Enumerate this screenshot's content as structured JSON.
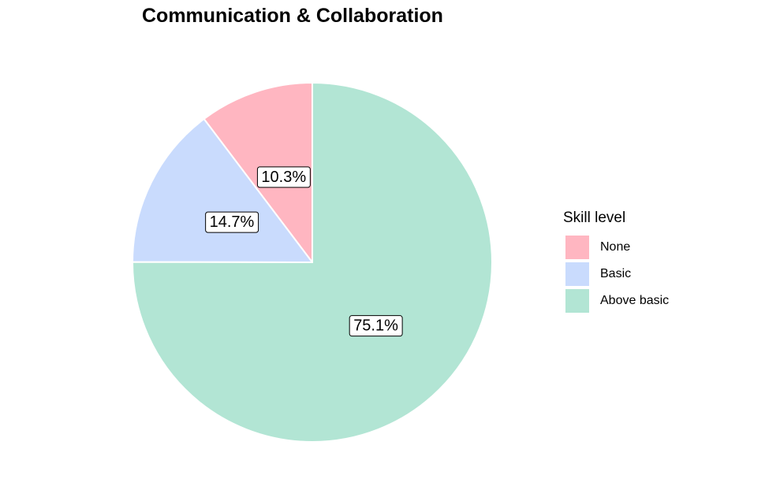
{
  "chart_data": {
    "type": "pie",
    "title": "Communication & Collaboration",
    "legend": {
      "title": "Skill level",
      "placement": "right"
    },
    "categories": [
      "None",
      "Basic",
      "Above basic"
    ],
    "values": [
      10.3,
      14.7,
      75.1
    ],
    "labels": [
      "10.3%",
      "14.7%",
      "75.1%"
    ],
    "colors": [
      "#ffb6c1",
      "#c9dbfd",
      "#b2e5d4"
    ],
    "start_angle": "12 o'clock",
    "direction": "counterclockwise"
  }
}
